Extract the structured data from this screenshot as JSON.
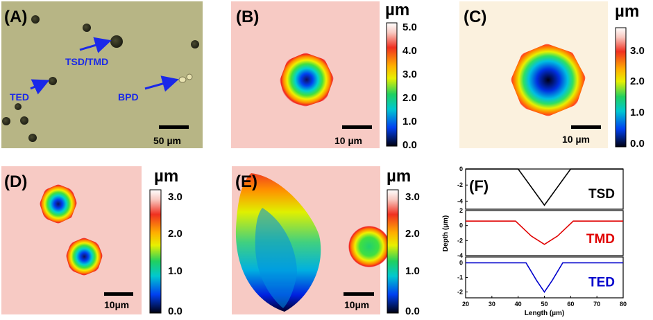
{
  "panels": {
    "A": {
      "label": "(A)",
      "scale": "50 µm",
      "arrows": [
        "TSD/TMD",
        "TED",
        "BPD"
      ]
    },
    "B": {
      "label": "(B)",
      "scale": "10 µm",
      "unit": "µm",
      "ticks": [
        "5.0",
        "4.0",
        "3.0",
        "2.0",
        "1.0",
        "0.0"
      ]
    },
    "C": {
      "label": "(C)",
      "scale": "10 µm",
      "unit": "µm",
      "ticks": [
        "3.0",
        "2.0",
        "1.0",
        "0.0"
      ]
    },
    "D": {
      "label": "(D)",
      "scale": "10µm",
      "unit": "µm",
      "ticks": [
        "3.0",
        "2.0",
        "1.0",
        "0.0"
      ]
    },
    "E": {
      "label": "(E)",
      "scale": "10µm",
      "unit": "µm",
      "ticks": [
        "3.0",
        "2.0",
        "1.0",
        "0.0"
      ]
    },
    "F": {
      "label": "(F)"
    }
  },
  "chart_data": {
    "type": "line",
    "title": "(F)",
    "xlabel": "Length (µm)",
    "ylabel": "Depth (µm)",
    "xlim": [
      20,
      80
    ],
    "xticks": [
      "20",
      "30",
      "40",
      "50",
      "60",
      "70",
      "80"
    ],
    "series": [
      {
        "name": "TSD",
        "color": "#000000",
        "ylim": [
          -5,
          0
        ],
        "yticks": [
          "0",
          "-2",
          "-4"
        ],
        "x": [
          20,
          40,
          50,
          60,
          80
        ],
        "y": [
          0,
          0,
          -4.5,
          0,
          0
        ]
      },
      {
        "name": "TMD",
        "color": "#e00000",
        "ylim": [
          -4,
          2
        ],
        "yticks": [
          "2",
          "0",
          "-2",
          "-4"
        ],
        "x": [
          20,
          39,
          45,
          50,
          55,
          61,
          80
        ],
        "y": [
          0.6,
          0.6,
          -1.4,
          -2.5,
          -1.4,
          0.6,
          0.6
        ]
      },
      {
        "name": "TED",
        "color": "#0000cc",
        "ylim": [
          -2.4,
          0.4
        ],
        "yticks": [
          "0",
          "-1",
          "-2"
        ],
        "x": [
          20,
          43,
          47,
          50,
          53,
          57,
          80
        ],
        "y": [
          0,
          0,
          -1.2,
          -2.0,
          -1.2,
          0,
          0
        ]
      }
    ]
  }
}
